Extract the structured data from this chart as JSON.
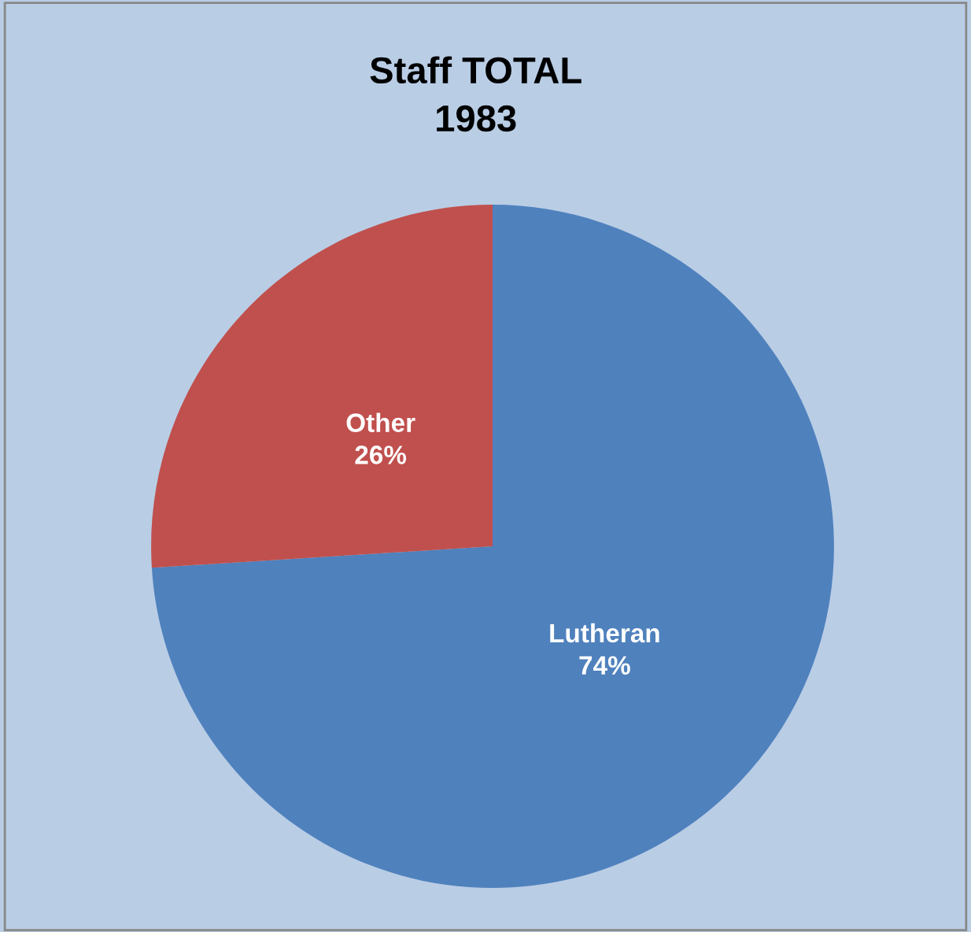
{
  "chart_data": {
    "type": "pie",
    "title": "Staff TOTAL\n1983",
    "categories": [
      "Lutheran",
      "Other"
    ],
    "values": [
      74,
      26
    ],
    "colors": [
      "#4f81bd",
      "#c0504d"
    ],
    "value_labels": [
      "74%",
      "26%"
    ],
    "legend": false
  }
}
